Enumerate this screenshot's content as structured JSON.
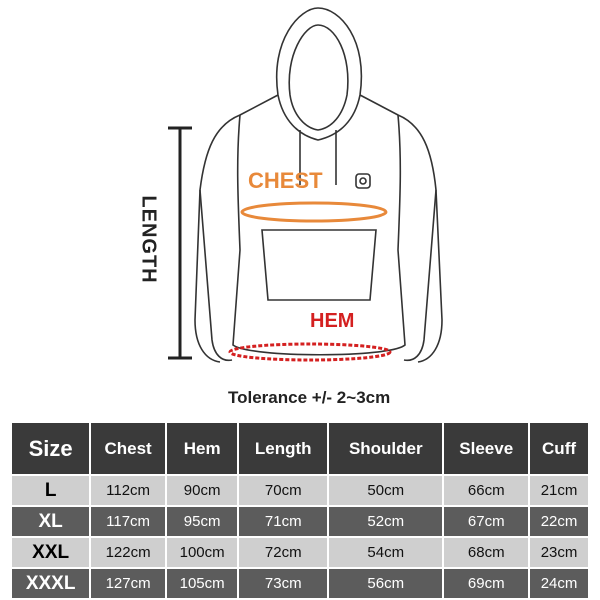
{
  "diagram": {
    "chest_label": "CHEST",
    "hem_label": "HEM",
    "length_label": "LENGTH",
    "tolerance": "Tolerance +/- 2~3cm",
    "colors": {
      "chest": "#e8893a",
      "hem": "#d42020"
    }
  },
  "table": {
    "headers": [
      "Size",
      "Chest",
      "Hem",
      "Length",
      "Shoulder",
      "Sleeve",
      "Cuff"
    ],
    "rows": [
      [
        "L",
        "112cm",
        "90cm",
        "70cm",
        "50cm",
        "66cm",
        "21cm"
      ],
      [
        "XL",
        "117cm",
        "95cm",
        "71cm",
        "52cm",
        "67cm",
        "22cm"
      ],
      [
        "XXL",
        "122cm",
        "100cm",
        "72cm",
        "54cm",
        "68cm",
        "23cm"
      ],
      [
        "XXXL",
        "127cm",
        "105cm",
        "73cm",
        "56cm",
        "69cm",
        "24cm"
      ]
    ]
  }
}
